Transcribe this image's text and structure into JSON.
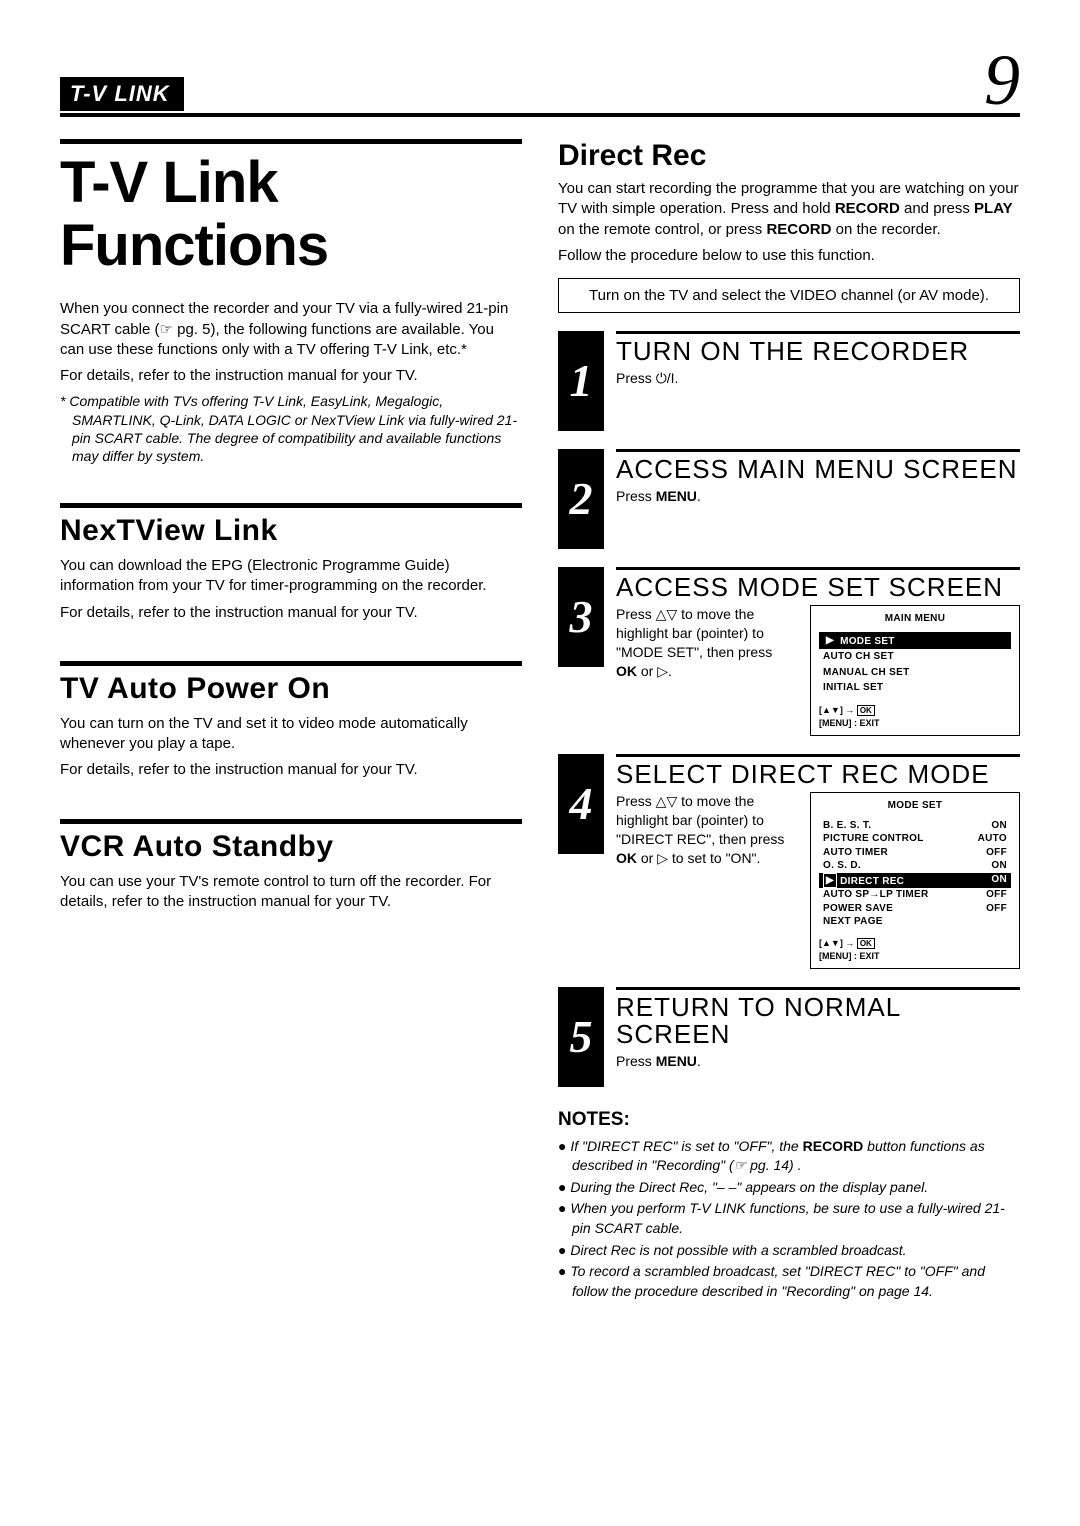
{
  "page": {
    "header_label": "T-V LINK",
    "page_number": "9",
    "background_color": "#ffffff",
    "text_color": "#000000"
  },
  "left": {
    "main_title": "T-V Link Functions",
    "intro": "When you connect the recorder and your TV via a fully-wired 21-pin SCART cable (☞ pg. 5), the following functions are available. You can use these functions only with a TV offering T-V Link, etc.*",
    "intro2": "For details, refer to the instruction manual for your TV.",
    "footnote": "* Compatible with TVs offering T-V Link, EasyLink, Megalogic, SMARTLINK, Q-Link, DATA LOGIC or NexTView Link via fully-wired 21-pin SCART cable. The degree of compatibility and available functions may differ by system.",
    "sec1_title": "NexTView Link",
    "sec1_p1": "You can download the EPG (Electronic Programme Guide) information from your TV for timer-programming on the recorder.",
    "sec1_p2": "For details, refer to the instruction manual for your TV.",
    "sec2_title": "TV Auto Power On",
    "sec2_p1": "You can turn on the TV and set it to video mode automatically whenever you play a tape.",
    "sec2_p2": "For details, refer to the instruction manual for your TV.",
    "sec3_title": "VCR Auto Standby",
    "sec3_p1": "You can use your TV's remote control to turn off the recorder. For details, refer to the instruction manual for your TV."
  },
  "right": {
    "title": "Direct Rec",
    "follow": "Follow the procedure below to use this function.",
    "boxed": "Turn on the TV and select the VIDEO channel (or AV mode).",
    "steps": [
      {
        "num": "1",
        "title": "TURN ON THE RECORDER",
        "text_pre": "Press ",
        "text_sym": "⏻/I",
        "text_post": "."
      },
      {
        "num": "2",
        "title": "ACCESS MAIN MENU SCREEN",
        "text_html": "Press <b>MENU</b>."
      },
      {
        "num": "3",
        "title": "ACCESS MODE SET SCREEN",
        "osd": {
          "title": "MAIN MENU",
          "items": [
            "MODE SET",
            "AUTO CH SET",
            "MANUAL CH SET",
            "INITIAL SET"
          ],
          "highlight_index": 0,
          "nav": "[▲▼] → OK\n[MENU] : EXIT"
        }
      },
      {
        "num": "4",
        "title": "SELECT DIRECT REC MODE",
        "osd2": {
          "title": "MODE SET",
          "rows": [
            {
              "l": "B. E. S. T.",
              "r": "ON"
            },
            {
              "l": "PICTURE CONTROL",
              "r": "AUTO"
            },
            {
              "l": "AUTO TIMER",
              "r": "OFF"
            },
            {
              "l": "O. S. D.",
              "r": "ON"
            },
            {
              "l": "DIRECT REC",
              "r": "ON",
              "hi": true
            },
            {
              "l": "AUTO SP→LP TIMER",
              "r": "OFF"
            },
            {
              "l": "POWER SAVE",
              "r": "OFF"
            },
            {
              "l": "NEXT PAGE",
              "r": ""
            }
          ],
          "nav": "[▲▼] → OK\n[MENU] : EXIT"
        }
      },
      {
        "num": "5",
        "title": "RETURN TO NORMAL SCREEN",
        "text_html": "Press <b>MENU</b>."
      }
    ],
    "notes_title": "NOTES:",
    "notes": [
      "If \"DIRECT REC\" is set to \"OFF\", the <b>RECORD</b> button functions as described in \"Recording\" (☞ pg. 14) .",
      "During the Direct Rec, \"– –\" appears on the display panel.",
      "When you perform T-V LINK functions, be sure to use a fully-wired 21-pin SCART cable.",
      "Direct Rec is not possible with a scrambled broadcast.",
      "To record a scrambled broadcast, set \"DIRECT REC\" to \"OFF\" and follow the procedure described in \"Recording\" on page 14."
    ]
  }
}
